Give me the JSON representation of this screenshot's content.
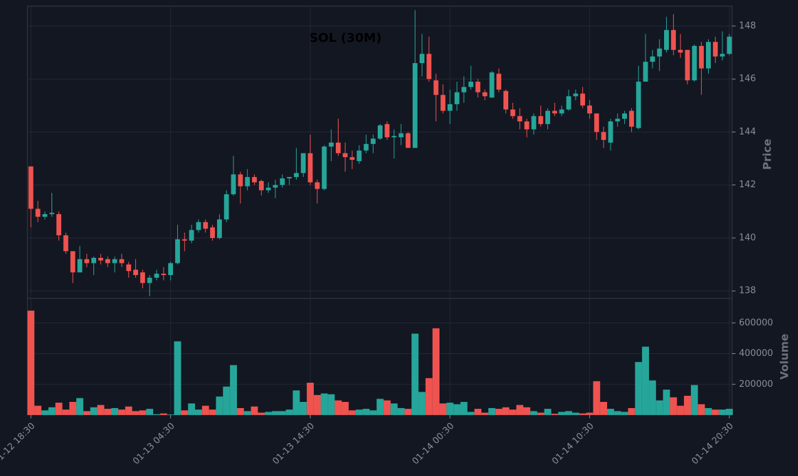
{
  "chart_data": {
    "type": "candlestick",
    "title": "SOL (30M)",
    "ylabel": "Price",
    "volume_ylabel": "Volume",
    "categories": [
      "01-12 18:30",
      null,
      null,
      null,
      null,
      null,
      null,
      null,
      null,
      null,
      null,
      null,
      null,
      null,
      null,
      null,
      null,
      null,
      null,
      null,
      "01-13 04:30",
      null,
      null,
      null,
      null,
      null,
      null,
      null,
      null,
      null,
      null,
      null,
      null,
      null,
      null,
      null,
      null,
      null,
      null,
      null,
      "01-13 14:30",
      null,
      null,
      null,
      null,
      null,
      null,
      null,
      null,
      null,
      null,
      null,
      null,
      null,
      null,
      null,
      null,
      null,
      null,
      null,
      "01-14 00:30",
      null,
      null,
      null,
      null,
      null,
      null,
      null,
      null,
      null,
      null,
      null,
      null,
      null,
      null,
      null,
      null,
      null,
      null,
      null,
      "01-14 10:30",
      null,
      null,
      null,
      null,
      null,
      null,
      null,
      null,
      null,
      null,
      null,
      null,
      null,
      null,
      null,
      null,
      null,
      null,
      null,
      "01-14 20:30"
    ],
    "open": [
      142.7,
      141.1,
      140.8,
      140.9,
      140.9,
      140.1,
      139.5,
      138.7,
      139.2,
      139.05,
      139.25,
      139.2,
      139.05,
      139.2,
      139.0,
      138.8,
      138.7,
      138.3,
      138.5,
      138.65,
      138.6,
      139.05,
      139.95,
      139.9,
      140.3,
      140.6,
      140.4,
      140.0,
      140.7,
      141.65,
      142.4,
      141.95,
      142.3,
      142.15,
      141.8,
      141.9,
      142.0,
      142.25,
      142.3,
      142.45,
      143.2,
      142.1,
      141.85,
      143.45,
      143.6,
      143.2,
      143.05,
      142.9,
      143.3,
      143.55,
      143.75,
      144.3,
      143.8,
      143.8,
      143.95,
      143.4,
      146.6,
      146.95,
      145.95,
      145.4,
      144.8,
      145.05,
      145.5,
      145.7,
      145.9,
      145.5,
      145.3,
      146.2,
      145.55,
      144.85,
      144.6,
      144.4,
      144.1,
      144.6,
      144.3,
      144.8,
      144.7,
      144.85,
      145.35,
      145.45,
      145.0,
      144.7,
      144.0,
      143.6,
      144.4,
      144.5,
      144.8,
      144.15,
      145.9,
      146.65,
      146.85,
      147.1,
      147.85,
      147.1,
      147.1,
      145.95,
      147.25,
      146.4,
      147.4,
      146.85,
      146.95
    ],
    "high": [
      142.7,
      141.4,
      141.0,
      141.7,
      141.0,
      140.2,
      139.5,
      139.7,
      139.4,
      139.3,
      139.4,
      139.3,
      139.3,
      139.4,
      139.1,
      139.2,
      138.8,
      138.6,
      138.8,
      138.9,
      139.1,
      140.5,
      140.2,
      140.5,
      140.7,
      140.7,
      140.5,
      140.9,
      141.8,
      143.1,
      142.5,
      142.6,
      142.4,
      142.2,
      142.1,
      142.2,
      142.4,
      142.3,
      143.4,
      143.2,
      143.9,
      142.2,
      143.5,
      144.1,
      144.5,
      143.6,
      143.3,
      143.5,
      143.9,
      143.9,
      144.3,
      144.4,
      144.1,
      144.3,
      144.0,
      148.6,
      147.7,
      147.6,
      146.2,
      145.8,
      145.6,
      145.9,
      146.1,
      146.5,
      146.0,
      145.6,
      146.3,
      146.4,
      145.6,
      145.1,
      144.9,
      144.5,
      144.7,
      145.0,
      144.9,
      145.1,
      145.0,
      145.6,
      145.6,
      145.7,
      145.2,
      144.7,
      144.2,
      144.5,
      144.7,
      144.8,
      144.9,
      146.5,
      147.7,
      147.1,
      147.5,
      148.35,
      148.45,
      147.7,
      147.1,
      147.3,
      147.4,
      147.5,
      147.6,
      147.8,
      147.7
    ],
    "low": [
      140.4,
      140.6,
      140.7,
      140.8,
      139.9,
      139.4,
      138.3,
      138.7,
      138.9,
      138.6,
      139.0,
      138.9,
      138.7,
      138.9,
      138.5,
      138.5,
      138.1,
      137.8,
      138.4,
      138.4,
      138.4,
      139.0,
      139.5,
      139.8,
      140.2,
      140.2,
      139.9,
      139.95,
      140.6,
      141.6,
      141.3,
      141.8,
      142.0,
      141.6,
      141.7,
      141.5,
      141.9,
      142.0,
      142.2,
      142.3,
      142.0,
      141.3,
      141.8,
      142.9,
      143.1,
      142.5,
      142.6,
      142.8,
      143.2,
      143.2,
      143.7,
      143.7,
      143.0,
      143.5,
      143.4,
      143.4,
      146.1,
      145.9,
      144.4,
      144.7,
      144.3,
      144.8,
      145.1,
      145.6,
      145.3,
      145.2,
      145.3,
      145.5,
      144.7,
      144.5,
      144.1,
      143.8,
      143.9,
      144.2,
      144.1,
      144.6,
      144.6,
      144.8,
      145.2,
      144.9,
      144.5,
      143.7,
      143.4,
      143.3,
      144.2,
      144.3,
      144.0,
      144.1,
      145.9,
      146.4,
      146.3,
      147.0,
      146.9,
      146.8,
      145.8,
      145.9,
      145.4,
      146.2,
      146.6,
      146.7,
      146.9
    ],
    "close": [
      141.1,
      140.8,
      140.9,
      140.95,
      140.1,
      139.5,
      138.7,
      139.2,
      139.05,
      139.25,
      139.15,
      139.05,
      139.2,
      139.05,
      138.75,
      138.6,
      138.3,
      138.5,
      138.65,
      138.6,
      139.05,
      139.95,
      139.9,
      140.3,
      140.6,
      140.35,
      140.0,
      140.7,
      141.65,
      142.4,
      141.95,
      142.3,
      142.1,
      141.8,
      141.9,
      142.0,
      142.25,
      142.3,
      142.45,
      143.2,
      142.1,
      141.85,
      143.45,
      143.6,
      143.2,
      143.05,
      142.95,
      143.3,
      143.55,
      143.75,
      144.25,
      143.8,
      143.85,
      143.95,
      143.4,
      146.6,
      146.95,
      146.0,
      145.4,
      144.8,
      145.05,
      145.5,
      145.7,
      145.9,
      145.5,
      145.35,
      146.25,
      145.6,
      144.85,
      144.6,
      144.4,
      144.1,
      144.6,
      144.3,
      144.8,
      144.7,
      144.85,
      145.35,
      145.45,
      145.0,
      144.7,
      144.0,
      143.7,
      144.4,
      144.5,
      144.7,
      144.2,
      145.9,
      146.65,
      146.85,
      147.15,
      147.85,
      147.1,
      147.0,
      145.95,
      147.25,
      146.4,
      147.4,
      146.85,
      146.95,
      147.6
    ],
    "volume": [
      680000,
      60000,
      30000,
      50000,
      80000,
      35000,
      85000,
      110000,
      25000,
      50000,
      65000,
      40000,
      45000,
      35000,
      55000,
      25000,
      30000,
      40000,
      5000,
      10000,
      3000,
      480000,
      30000,
      75000,
      35000,
      60000,
      35000,
      120000,
      185000,
      325000,
      45000,
      25000,
      55000,
      15000,
      20000,
      25000,
      25000,
      35000,
      160000,
      85000,
      210000,
      130000,
      140000,
      135000,
      95000,
      85000,
      30000,
      35000,
      40000,
      30000,
      105000,
      95000,
      75000,
      45000,
      40000,
      530000,
      150000,
      240000,
      565000,
      75000,
      80000,
      70000,
      85000,
      20000,
      40000,
      15000,
      45000,
      40000,
      50000,
      35000,
      65000,
      50000,
      25000,
      15000,
      40000,
      8000,
      20000,
      25000,
      15000,
      10000,
      15000,
      220000,
      85000,
      40000,
      25000,
      20000,
      45000,
      345000,
      445000,
      225000,
      95000,
      165000,
      115000,
      60000,
      125000,
      195000,
      70000,
      45000,
      35000,
      35000,
      40000
    ],
    "up_color": "#26a69a",
    "down_color": "#ef5350",
    "ylim": [
      137.72,
      148.75
    ],
    "yticks": [
      138,
      140,
      142,
      144,
      146,
      148
    ],
    "volume_ylim": [
      0,
      760000
    ],
    "volume_yticks": [
      200000,
      400000,
      600000
    ],
    "grid": true
  }
}
